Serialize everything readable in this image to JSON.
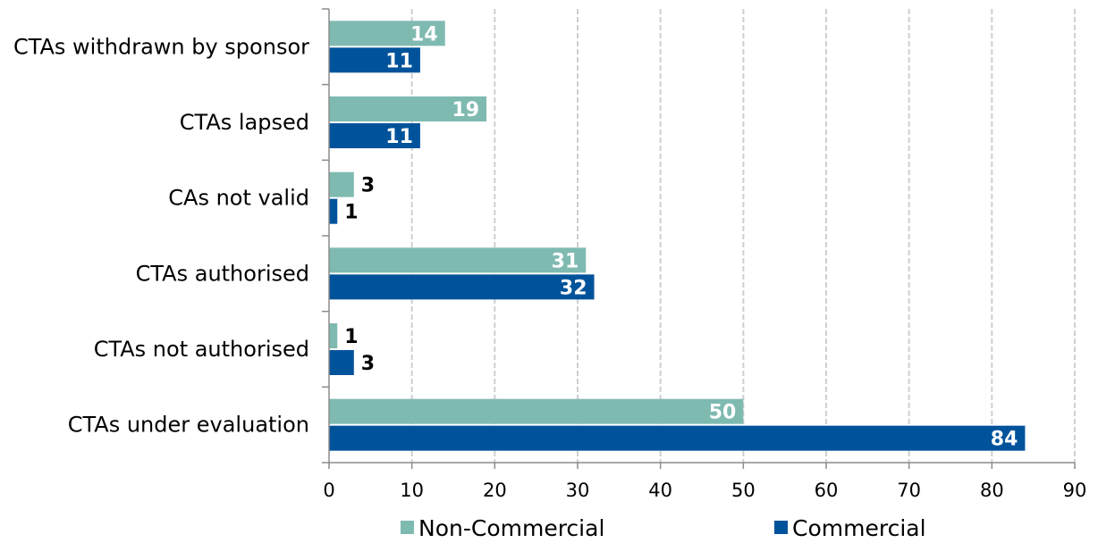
{
  "chart_data": {
    "type": "bar",
    "orientation": "horizontal",
    "categories": [
      "CTAs withdrawn by sponsor",
      "CTAs lapsed",
      "CAs not valid",
      "CTAs authorised",
      "CTAs not authorised",
      "CTAs under evaluation"
    ],
    "series": [
      {
        "name": "Non-Commercial",
        "color": "#7fbab1",
        "values": [
          14,
          19,
          3,
          31,
          1,
          50
        ]
      },
      {
        "name": "Commercial",
        "color": "#00539b",
        "values": [
          11,
          11,
          1,
          32,
          3,
          84
        ]
      }
    ],
    "xlim": [
      0,
      90
    ],
    "xticks": [
      0,
      10,
      20,
      30,
      40,
      50,
      60,
      70,
      80,
      90
    ],
    "grid": true,
    "legend_position": "bottom",
    "title": "",
    "xlabel": "",
    "ylabel": ""
  }
}
